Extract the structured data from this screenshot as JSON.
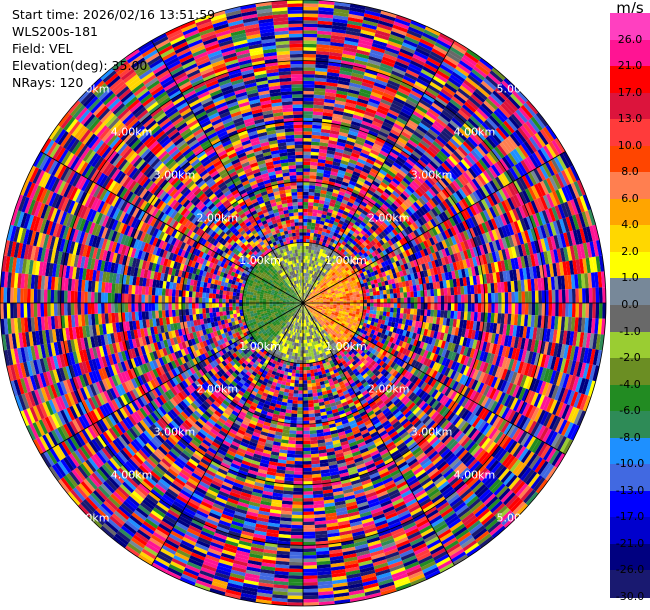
{
  "header": {
    "start_time": "Start time: 2026/02/16 13:51:59",
    "instrument": "WLS200s-181",
    "field": "Field: VEL",
    "elevation": "Elevation(deg): 35.00",
    "nrays": "NRays: 120"
  },
  "colorbar": {
    "unit": "m/s",
    "levels": [
      "26.0",
      "21.0",
      "17.0",
      "13.0",
      "10.0",
      "8.0",
      "6.0",
      "4.0",
      "2.0",
      "1.0",
      "0.0",
      "-1.0",
      "-2.0",
      "-4.0",
      "-6.0",
      "-8.0",
      "-10.0",
      "-13.0",
      "-17.0",
      "-21.0",
      "-26.0",
      "-30.0"
    ],
    "colors": [
      "#ff40c0",
      "#ff1493",
      "#ff0000",
      "#dc143c",
      "#ff3b3b",
      "#ff4500",
      "#ff7f50",
      "#ffa500",
      "#ffd700",
      "#ffff00",
      "#778899",
      "#696969",
      "#9acd32",
      "#6b8e23",
      "#228b22",
      "#2e8b57",
      "#1e90ff",
      "#4169e1",
      "#0000ff",
      "#0000cd",
      "#000080",
      "#191970"
    ]
  },
  "chart_data": {
    "type": "heatmap",
    "projection": "polar PPI",
    "field": "VEL",
    "elevation_deg": 35.0,
    "n_rays": 120,
    "unit": "m/s",
    "range_ring_labels": [
      "1.00km",
      "2.00km",
      "3.00km",
      "4.00km",
      "5.00km"
    ],
    "range_rings_km": [
      1,
      2,
      3,
      4,
      5
    ],
    "azimuth_spokes_deg": [
      0,
      30,
      60,
      90,
      120,
      150,
      180,
      210,
      240,
      270,
      300,
      330
    ],
    "value_range": [
      -30.0,
      26.0
    ],
    "max_range_km": 5.0,
    "near_field": {
      "range_km": [
        0,
        1
      ],
      "positive_sector_deg": [
        40,
        140
      ],
      "negative_sector_deg": [
        220,
        320
      ]
    },
    "far_field": "noise across full velocity range"
  }
}
